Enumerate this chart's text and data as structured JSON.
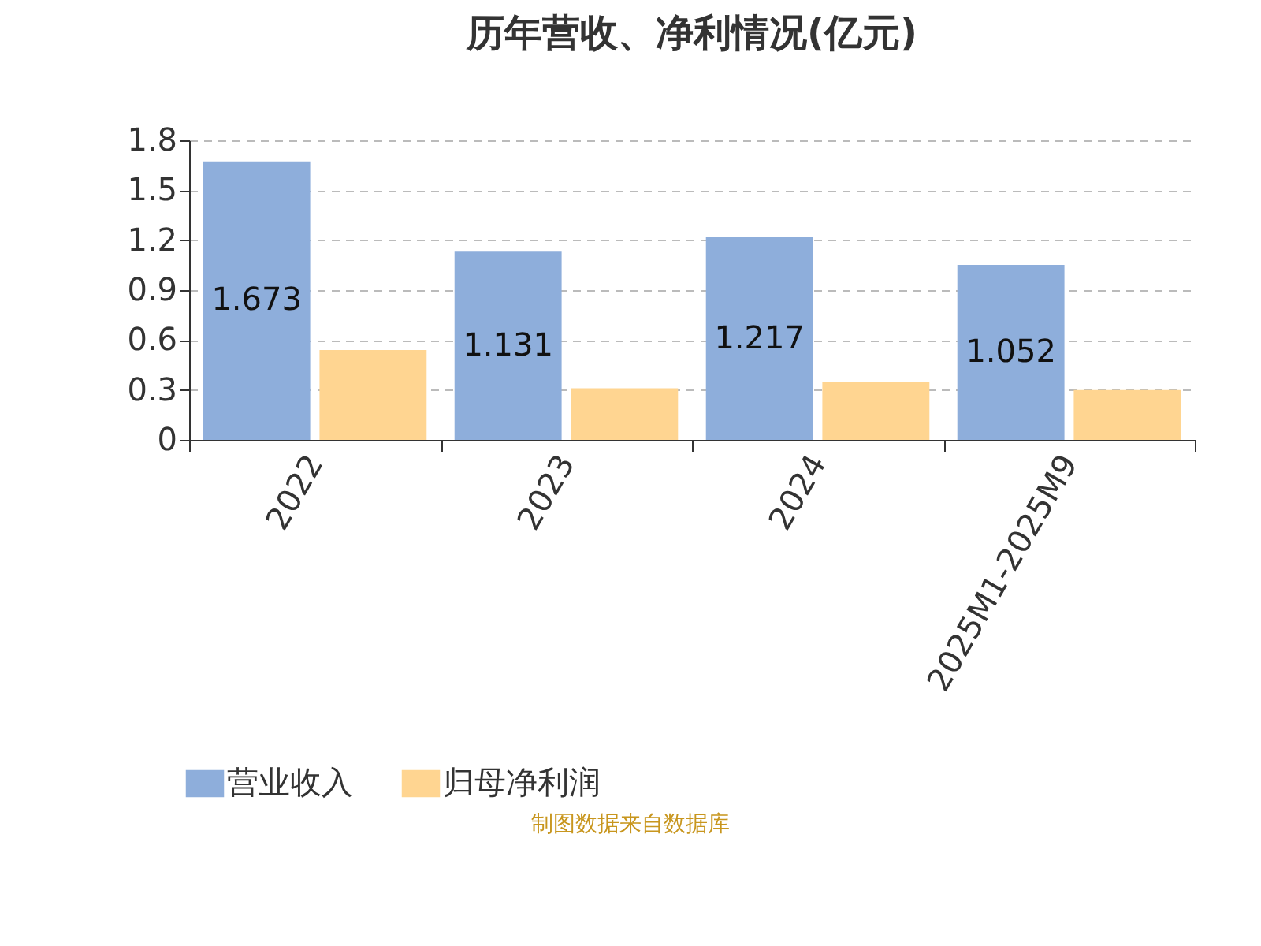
{
  "chart_data": {
    "type": "bar",
    "title": "历年营收、净利情况(亿元)",
    "categories": [
      "2022",
      "2023",
      "2024",
      "2025M1-2025M9"
    ],
    "series": [
      {
        "name": "营业收入",
        "color": "#8eaedb",
        "values": [
          1.673,
          1.131,
          1.217,
          1.052
        ],
        "value_labels": [
          "1.673",
          "1.131",
          "1.217",
          "1.052"
        ]
      },
      {
        "name": "归母净利润",
        "color": "#ffd591",
        "values": [
          0.54,
          0.31,
          0.35,
          0.3
        ]
      }
    ],
    "ylim": [
      0,
      1.8
    ],
    "yticks": [
      0,
      0.3,
      0.6,
      0.9,
      1.2,
      1.5,
      1.8
    ],
    "grid": "y",
    "legend": "bottom",
    "annotations": [
      "制图数据来自数据库"
    ]
  }
}
